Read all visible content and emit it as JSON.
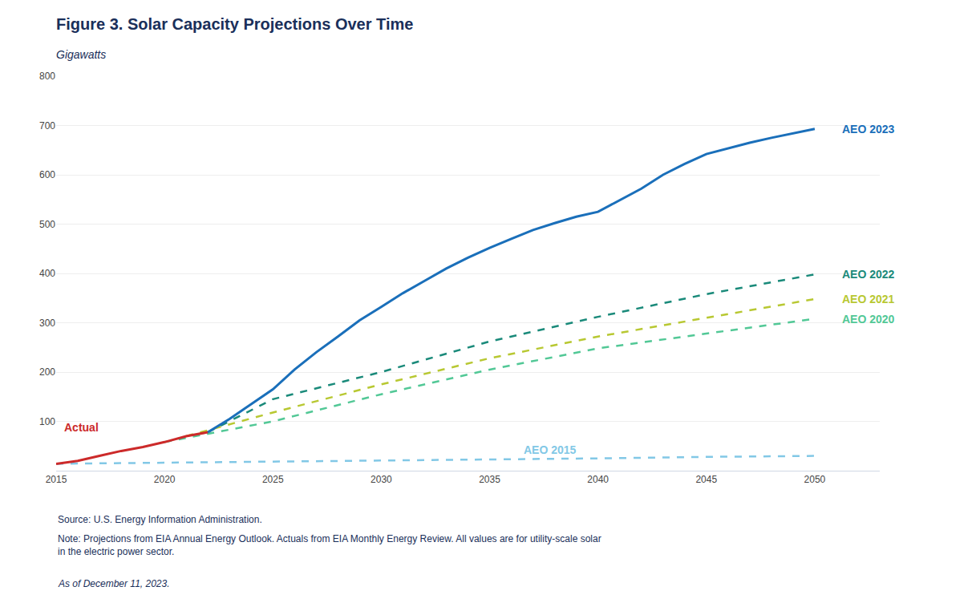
{
  "chart_data": {
    "type": "line",
    "title": "Figure 3. Solar Capacity Projections Over Time",
    "subtitle": "Gigawatts",
    "xlim": [
      2015,
      2053
    ],
    "ylim": [
      0,
      800
    ],
    "xticks": [
      2015,
      2020,
      2025,
      2030,
      2035,
      2040,
      2045,
      2050
    ],
    "yticks": [
      100,
      200,
      300,
      400,
      500,
      600,
      700,
      800
    ],
    "grid": "y",
    "series": [
      {
        "name": "AEO 2015",
        "color": "#82c8e6",
        "line_style": "dashed",
        "x": [
          2015,
          2020,
          2025,
          2030,
          2035,
          2040,
          2045,
          2050
        ],
        "values": [
          14,
          16,
          18,
          20,
          22,
          25,
          28,
          30
        ]
      },
      {
        "name": "AEO 2020",
        "color": "#52c896",
        "line_style": "dashed",
        "x": [
          2020,
          2025,
          2030,
          2035,
          2040,
          2045,
          2050
        ],
        "values": [
          58,
          100,
          155,
          205,
          248,
          278,
          308
        ]
      },
      {
        "name": "AEO 2021",
        "color": "#b8c832",
        "line_style": "dashed",
        "x": [
          2021,
          2025,
          2030,
          2035,
          2040,
          2045,
          2050
        ],
        "values": [
          70,
          118,
          175,
          228,
          272,
          310,
          348
        ]
      },
      {
        "name": "AEO 2022",
        "color": "#1a8a7a",
        "line_style": "dashed",
        "x": [
          2022,
          2025,
          2030,
          2035,
          2040,
          2045,
          2050
        ],
        "values": [
          78,
          145,
          200,
          262,
          312,
          358,
          398
        ]
      },
      {
        "name": "Actual",
        "color": "#cc2a2a",
        "line_style": "solid",
        "x": [
          2015,
          2016,
          2017,
          2018,
          2019,
          2020,
          2021,
          2022
        ],
        "values": [
          14,
          20,
          30,
          40,
          48,
          58,
          70,
          78
        ]
      },
      {
        "name": "AEO 2023",
        "color": "#1a6fba",
        "line_style": "solid",
        "x": [
          2022,
          2023,
          2024,
          2025,
          2026,
          2027,
          2028,
          2029,
          2030,
          2031,
          2032,
          2033,
          2034,
          2035,
          2036,
          2037,
          2038,
          2039,
          2040,
          2041,
          2042,
          2043,
          2044,
          2045,
          2046,
          2047,
          2048,
          2049,
          2050
        ],
        "values": [
          78,
          105,
          135,
          165,
          205,
          240,
          272,
          305,
          332,
          360,
          385,
          410,
          432,
          452,
          470,
          488,
          502,
          515,
          525,
          548,
          572,
          600,
          622,
          642,
          654,
          665,
          675,
          684,
          693
        ]
      }
    ],
    "annotations": [
      {
        "text": "Actual",
        "x": 2015.3,
        "y": 88,
        "color": "#cc2a2a"
      },
      {
        "text": "AEO 2023",
        "x": 2051.2,
        "y": 693,
        "color": "#1a6fba"
      },
      {
        "text": "AEO 2022",
        "x": 2051.2,
        "y": 398,
        "color": "#1a8a7a"
      },
      {
        "text": "AEO 2021",
        "x": 2051.2,
        "y": 348,
        "color": "#b8c832"
      },
      {
        "text": "AEO 2020",
        "x": 2051.2,
        "y": 308,
        "color": "#52c896"
      },
      {
        "text": "AEO 2015",
        "x": 2036.5,
        "y": 42,
        "color": "#82c8e6"
      }
    ],
    "footnotes": [
      "Source: U.S. Energy Information Administration.",
      "Note: Projections from EIA Annual Energy Outlook. Actuals from EIA Monthly Energy Review. All values are for utility-scale solar\nin the electric power sector.",
      "As of December 11, 2023."
    ]
  }
}
